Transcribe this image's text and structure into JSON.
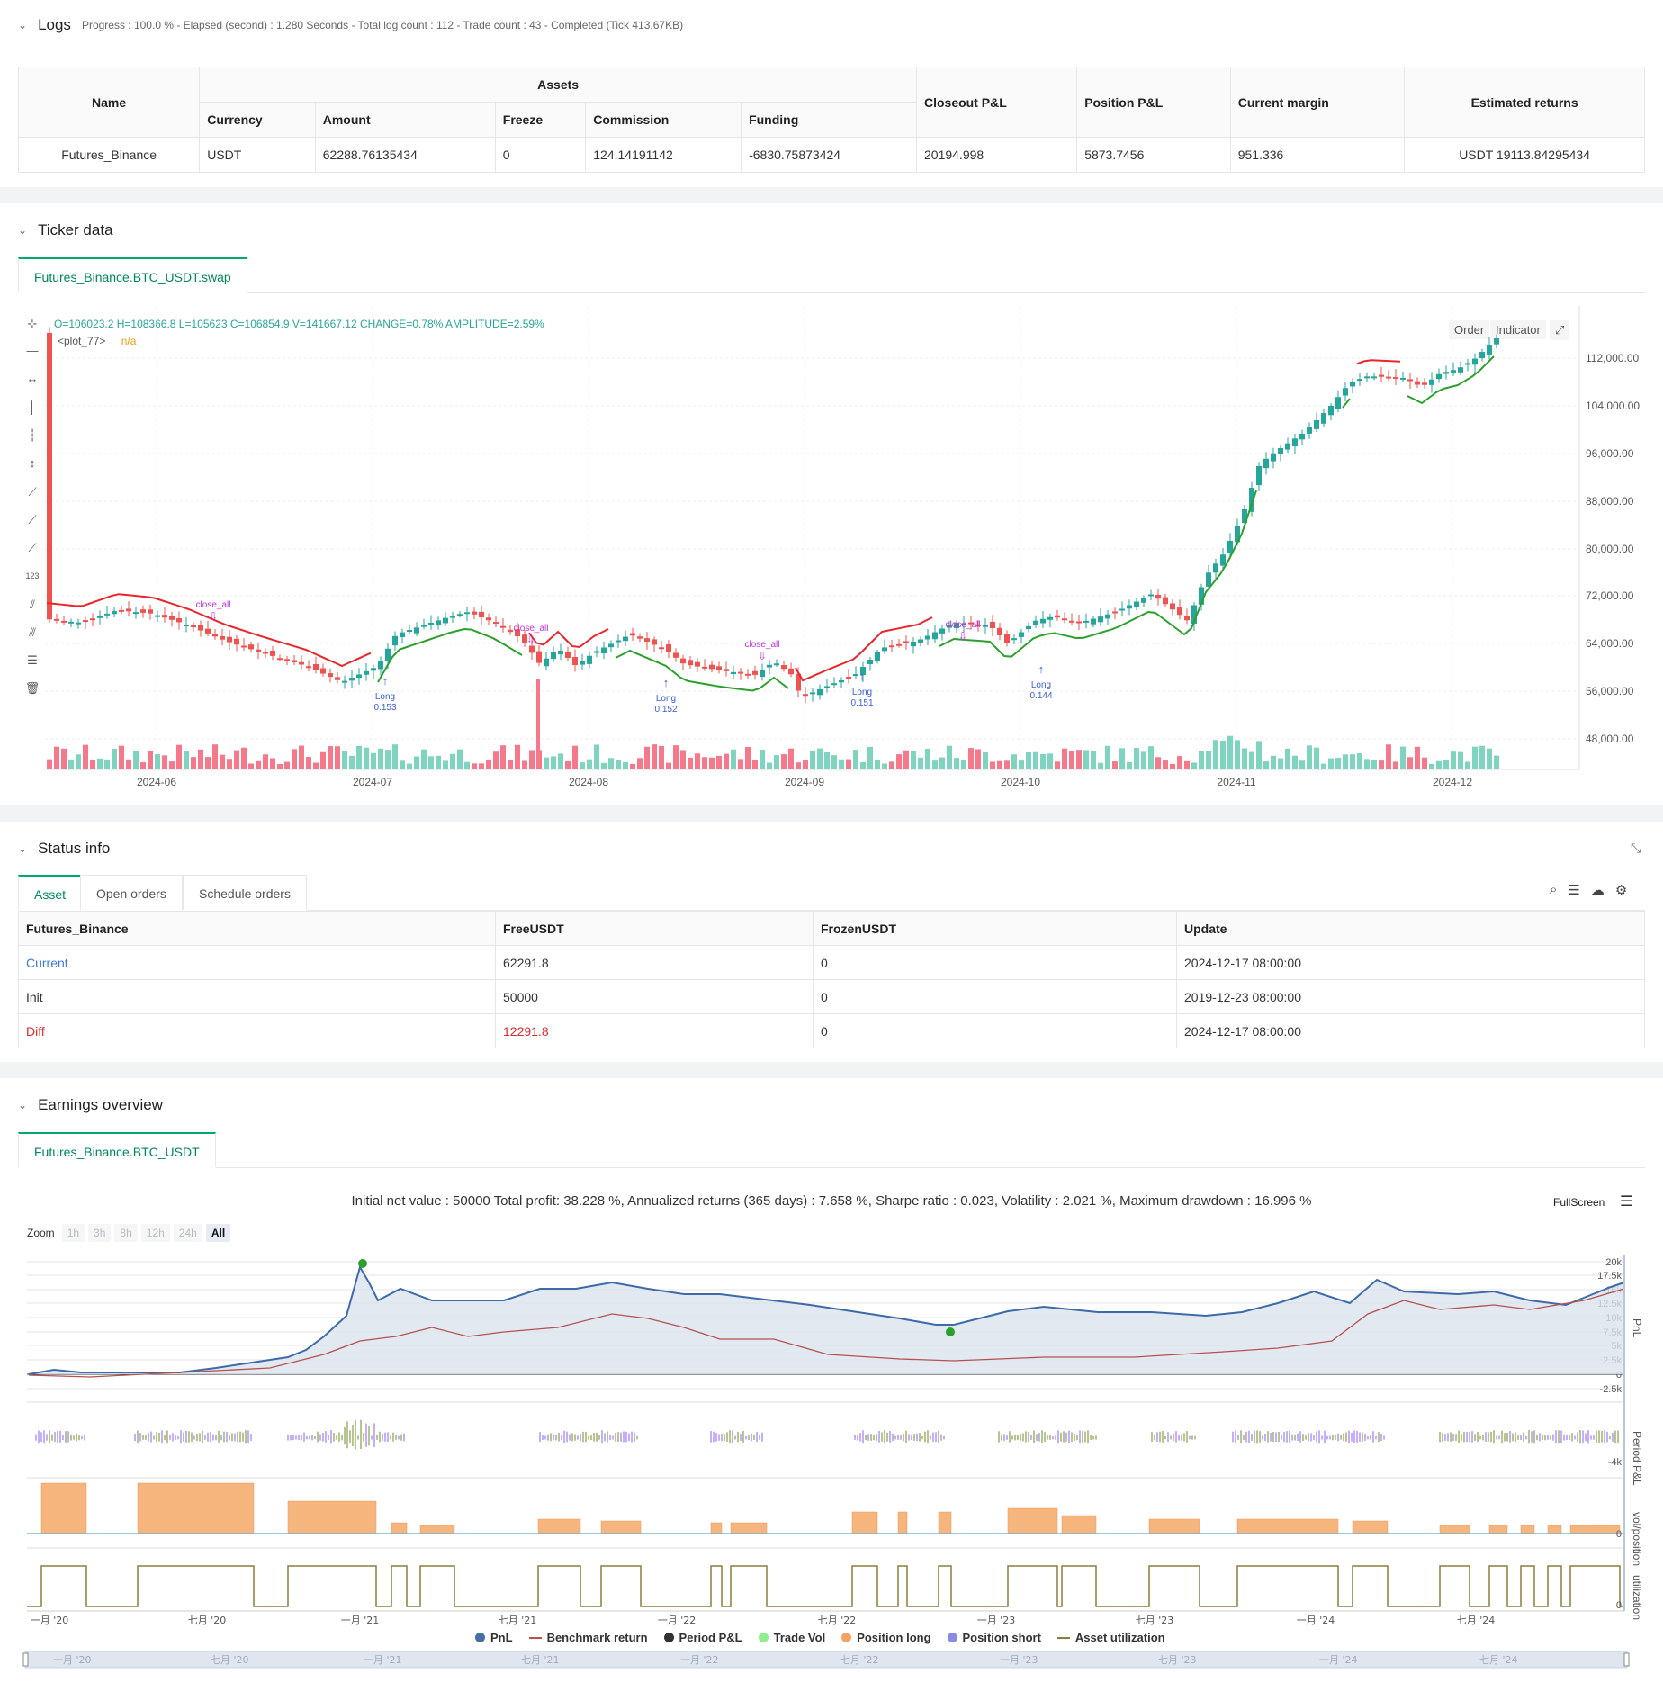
{
  "logs": {
    "title": "Logs",
    "summary": "Progress : 100.0 % - Elapsed (second) : 1.280  Seconds - Total log count : 112 - Trade count : 43 - Completed (Tick 413.67KB)",
    "headers": {
      "name": "Name",
      "assets": "Assets",
      "currency": "Currency",
      "amount": "Amount",
      "freeze": "Freeze",
      "commission": "Commission",
      "funding": "Funding",
      "closeout": "Closeout P&L",
      "position": "Position P&L",
      "margin": "Current margin",
      "returns": "Estimated returns"
    },
    "row": {
      "name": "Futures_Binance",
      "currency": "USDT",
      "amount": "62288.76135434",
      "freeze": "0",
      "commission": "124.14191142",
      "funding": "-6830.75873424",
      "closeout": "20194.998",
      "position": "5873.7456",
      "margin": "951.336",
      "returns": "USDT 19113.84295434"
    }
  },
  "ticker": {
    "title": "Ticker data",
    "tab": "Futures_Binance.BTC_USDT.swap",
    "ohlc": "O=106023.2 H=108366.8 L=105623 C=106854.9 V=141667.12 CHANGE=0.78% AMPLITUDE=2.59%",
    "plot_label": "<plot_77>",
    "plot_value": "n/a",
    "btn_order": "Order",
    "btn_indicator": "Indicator",
    "y_ticks": [
      "112,000.00",
      "104,000.00",
      "96,000.00",
      "88,000.00",
      "80,000.00",
      "72,000.00",
      "64,000.00",
      "56,000.00",
      "48,000.00"
    ],
    "x_ticks": [
      "2024-06",
      "2024-07",
      "2024-08",
      "2024-09",
      "2024-10",
      "2024-11",
      "2024-12"
    ],
    "annotations": {
      "close_all": "close_all",
      "long": "Long",
      "sizes": [
        "0.153",
        "0.152",
        "0.151",
        "0.144"
      ]
    },
    "colors": {
      "up": "#26a69a",
      "down": "#ef5350",
      "stop_up": "#2ca02c",
      "stop_down": "#e8262b",
      "signal": "#c030e0",
      "long": "#3b5bdb"
    }
  },
  "status": {
    "title": "Status info",
    "tabs": [
      "Asset",
      "Open orders",
      "Schedule orders"
    ],
    "headers": [
      "Futures_Binance",
      "FreeUSDT",
      "FrozenUSDT",
      "Update"
    ],
    "rows": [
      {
        "label": "Current",
        "free": "62291.8",
        "frozen": "0",
        "update": "2024-12-17 08:00:00"
      },
      {
        "label": "Init",
        "free": "50000",
        "frozen": "0",
        "update": "2019-12-23 08:00:00"
      },
      {
        "label": "Diff",
        "free": "12291.8",
        "frozen": "0",
        "update": "2024-12-17 08:00:00"
      }
    ]
  },
  "earnings": {
    "title": "Earnings overview",
    "tab": "Futures_Binance.BTC_USDT",
    "summary": "Initial net value : 50000 Total profit: 38.228 %, Annualized returns (365 days) : 7.658 %, Sharpe ratio : 0.023, Volatility : 2.021 %, Maximum drawdown : 16.996 %",
    "fullscreen": "FullScreen",
    "zoom_label": "Zoom",
    "zoom_options": [
      "1h",
      "3h",
      "8h",
      "12h",
      "24h",
      "All"
    ],
    "pnl_ticks": [
      "20k",
      "17.5k",
      "15k",
      "12.5k",
      "10k",
      "7.5k",
      "5k",
      "2.5k",
      "0",
      "-2.5k"
    ],
    "period_tick": "-4k",
    "vol_tick": "0",
    "util_tick": "0",
    "axis_titles": [
      "PnL",
      "Period P&L",
      "vol/position",
      "utilization"
    ],
    "x_ticks": [
      "一月 '20",
      "七月 '20",
      "一月 '21",
      "七月 '21",
      "一月 '22",
      "七月 '22",
      "一月 '23",
      "七月 '23",
      "一月 '24",
      "七月 '24"
    ],
    "legend": [
      {
        "label": "PnL",
        "color": "#4a6fa5",
        "kind": "dot"
      },
      {
        "label": "Benchmark return",
        "color": "#b5524f",
        "kind": "line"
      },
      {
        "label": "Period P&L",
        "color": "#333333",
        "kind": "dot"
      },
      {
        "label": "Trade Vol",
        "color": "#90ee90",
        "kind": "dot"
      },
      {
        "label": "Position long",
        "color": "#f4a460",
        "kind": "dot"
      },
      {
        "label": "Position short",
        "color": "#8a8ae6",
        "kind": "dot"
      },
      {
        "label": "Asset utilization",
        "color": "#8b7d3a",
        "kind": "line"
      }
    ]
  }
}
